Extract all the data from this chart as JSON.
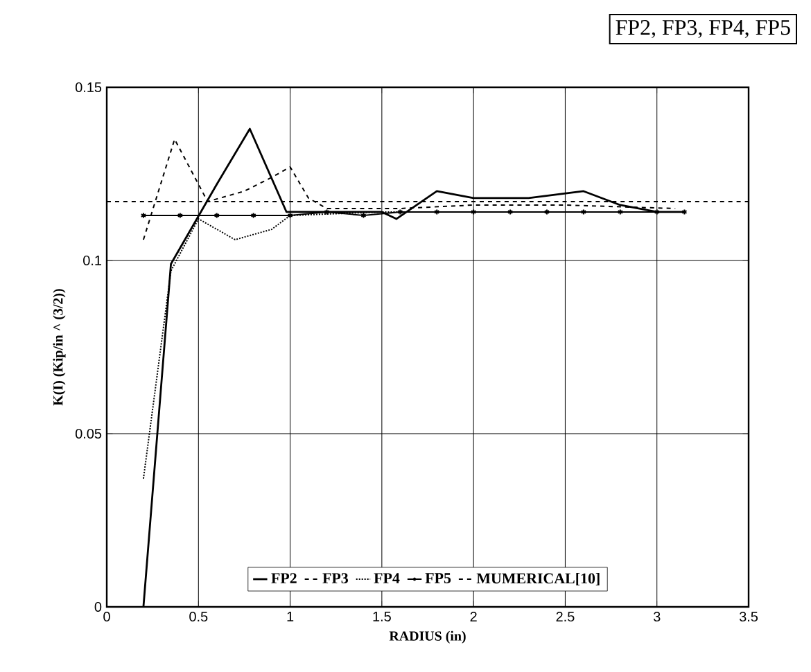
{
  "chart_data": {
    "type": "line",
    "title": "FP2, FP3, FP4, FP5",
    "xlabel": "RADIUS    (in)",
    "ylabel": "K(I)    (Kip/in ^ (3/2))",
    "xlim": [
      0,
      3.5
    ],
    "ylim": [
      0,
      0.15
    ],
    "xticks": [
      0,
      0.5,
      1,
      1.5,
      2,
      2.5,
      3,
      3.5
    ],
    "yticks": [
      0,
      0.05,
      0.1,
      0.15
    ],
    "grid": true,
    "legend": "bottom",
    "series": [
      {
        "name": "FP2",
        "color": "#000000",
        "line_style": "solid",
        "marker": "none",
        "x": [
          0.2,
          0.35,
          0.6,
          0.78,
          0.98,
          1.2,
          1.5,
          1.58,
          1.8,
          2.0,
          2.3,
          2.6,
          2.8,
          3.0,
          3.15
        ],
        "values": [
          0,
          0.099,
          0.122,
          0.138,
          0.114,
          0.114,
          0.114,
          0.112,
          0.12,
          0.118,
          0.118,
          0.12,
          0.116,
          0.114,
          0.114
        ]
      },
      {
        "name": "FP3",
        "color": "#000000",
        "line_style": "dashed",
        "marker": "none",
        "x": [
          0.2,
          0.37,
          0.55,
          0.75,
          0.9,
          1.0,
          1.1,
          1.2,
          1.6,
          2.0,
          2.5,
          3.1
        ],
        "values": [
          0.106,
          0.135,
          0.117,
          0.12,
          0.124,
          0.127,
          0.118,
          0.115,
          0.115,
          0.116,
          0.116,
          0.115
        ]
      },
      {
        "name": "FP4",
        "color": "#000000",
        "line_style": "dotted",
        "marker": "none",
        "x": [
          0.2,
          0.35,
          0.5,
          0.7,
          0.9,
          1.0,
          1.5,
          2.0,
          2.5,
          3.1
        ],
        "values": [
          0.037,
          0.097,
          0.112,
          0.106,
          0.109,
          0.113,
          0.114,
          0.114,
          0.114,
          0.114
        ]
      },
      {
        "name": "FP5",
        "color": "#000000",
        "line_style": "solid",
        "marker": "cross",
        "x": [
          0.2,
          0.4,
          0.6,
          0.8,
          1.0,
          1.2,
          1.4,
          1.6,
          1.8,
          2.0,
          2.2,
          2.4,
          2.6,
          2.8,
          3.0,
          3.15
        ],
        "values": [
          0.113,
          0.113,
          0.113,
          0.113,
          0.113,
          0.114,
          0.113,
          0.114,
          0.114,
          0.114,
          0.114,
          0.114,
          0.114,
          0.114,
          0.114,
          0.114
        ]
      },
      {
        "name": "MUMERICAL[10]",
        "color": "#000000",
        "line_style": "dashed",
        "marker": "none",
        "x": [
          0,
          3.5
        ],
        "values": [
          0.117,
          0.117
        ]
      }
    ]
  }
}
